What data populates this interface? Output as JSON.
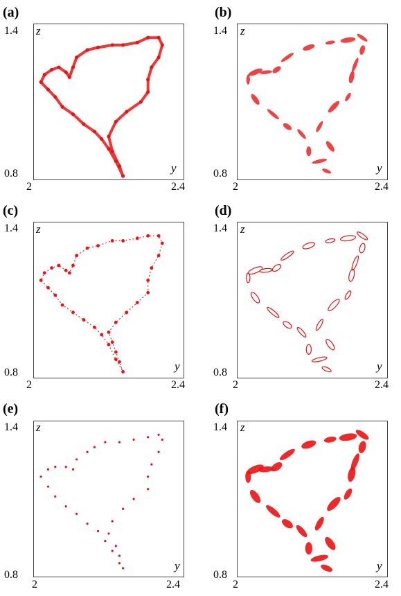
{
  "colors": {
    "points": "#ee1111",
    "frame": "#444444"
  },
  "chart_data": [
    {
      "panel": "(a)",
      "type": "scatter",
      "style": "dense-loop",
      "xlabel": "y",
      "ylabel": "z",
      "xlim": [
        2,
        2.4
      ],
      "ylim": [
        0.8,
        1.4
      ],
      "xticks": [
        "2",
        "2.4"
      ],
      "yticks": [
        "1.4",
        "0.8"
      ],
      "points": [
        [
          2.24,
          0.8
        ],
        [
          2.23,
          0.84
        ],
        [
          2.21,
          0.9
        ],
        [
          2.2,
          0.96
        ],
        [
          2.22,
          1.02
        ],
        [
          2.25,
          1.06
        ],
        [
          2.29,
          1.1
        ],
        [
          2.31,
          1.14
        ],
        [
          2.31,
          1.19
        ],
        [
          2.32,
          1.24
        ],
        [
          2.34,
          1.28
        ],
        [
          2.35,
          1.33
        ],
        [
          2.34,
          1.36
        ],
        [
          2.31,
          1.36
        ],
        [
          2.28,
          1.34
        ],
        [
          2.24,
          1.33
        ],
        [
          2.21,
          1.33
        ],
        [
          2.17,
          1.32
        ],
        [
          2.14,
          1.31
        ],
        [
          2.11,
          1.28
        ],
        [
          2.1,
          1.24
        ],
        [
          2.09,
          1.2
        ],
        [
          2.08,
          1.22
        ],
        [
          2.06,
          1.24
        ],
        [
          2.04,
          1.23
        ],
        [
          2.02,
          1.21
        ],
        [
          2.01,
          1.18
        ],
        [
          2.03,
          1.15
        ],
        [
          2.05,
          1.12
        ],
        [
          2.07,
          1.08
        ],
        [
          2.1,
          1.05
        ],
        [
          2.13,
          1.01
        ],
        [
          2.16,
          0.98
        ],
        [
          2.18,
          0.95
        ],
        [
          2.2,
          0.91
        ],
        [
          2.22,
          0.86
        ]
      ]
    },
    {
      "panel": "(b)",
      "type": "scatter",
      "style": "dense-islands",
      "xlabel": "y",
      "ylabel": "z",
      "xlim": [
        2,
        2.4
      ],
      "ylim": [
        0.8,
        1.4
      ],
      "xticks": [
        "2",
        "2.4"
      ],
      "yticks": [
        "1.4",
        "0.8"
      ],
      "points": [
        [
          2.24,
          0.82
        ],
        [
          2.25,
          0.92
        ],
        [
          2.22,
          0.86
        ],
        [
          2.19,
          0.9
        ],
        [
          2.22,
          1.0
        ],
        [
          2.26,
          1.08
        ],
        [
          2.3,
          1.12
        ],
        [
          2.31,
          1.2
        ],
        [
          2.32,
          1.25
        ],
        [
          2.34,
          1.31
        ],
        [
          2.34,
          1.36
        ],
        [
          2.3,
          1.35
        ],
        [
          2.25,
          1.34
        ],
        [
          2.19,
          1.32
        ],
        [
          2.13,
          1.28
        ],
        [
          2.1,
          1.23
        ],
        [
          2.07,
          1.22
        ],
        [
          2.04,
          1.22
        ],
        [
          2.02,
          1.19
        ],
        [
          2.04,
          1.11
        ],
        [
          2.09,
          1.05
        ],
        [
          2.13,
          1.0
        ],
        [
          2.17,
          0.97
        ]
      ]
    },
    {
      "panel": "(c)",
      "type": "scatter",
      "style": "clusters",
      "xlabel": "y",
      "ylabel": "z",
      "xlim": [
        2,
        2.4
      ],
      "ylim": [
        0.8,
        1.4
      ],
      "xticks": [
        "2",
        "2.4"
      ],
      "yticks": [
        "1.4",
        "0.8"
      ],
      "points": [
        [
          2.24,
          0.81
        ],
        [
          2.23,
          0.85
        ],
        [
          2.22,
          0.89
        ],
        [
          2.21,
          0.93
        ],
        [
          2.2,
          0.97
        ],
        [
          2.22,
          1.01
        ],
        [
          2.25,
          1.05
        ],
        [
          2.28,
          1.09
        ],
        [
          2.31,
          1.13
        ],
        [
          2.31,
          1.18
        ],
        [
          2.32,
          1.23
        ],
        [
          2.34,
          1.28
        ],
        [
          2.35,
          1.33
        ],
        [
          2.34,
          1.36
        ],
        [
          2.31,
          1.36
        ],
        [
          2.28,
          1.35
        ],
        [
          2.24,
          1.34
        ],
        [
          2.21,
          1.34
        ],
        [
          2.17,
          1.32
        ],
        [
          2.14,
          1.31
        ],
        [
          2.11,
          1.28
        ],
        [
          2.1,
          1.24
        ],
        [
          2.09,
          1.21
        ],
        [
          2.08,
          1.22
        ],
        [
          2.06,
          1.24
        ],
        [
          2.04,
          1.23
        ],
        [
          2.02,
          1.21
        ],
        [
          2.01,
          1.18
        ],
        [
          2.03,
          1.15
        ],
        [
          2.05,
          1.12
        ],
        [
          2.07,
          1.08
        ],
        [
          2.1,
          1.05
        ],
        [
          2.13,
          1.02
        ],
        [
          2.16,
          0.99
        ],
        [
          2.18,
          0.96
        ],
        [
          2.2,
          0.92
        ],
        [
          2.22,
          0.86
        ]
      ]
    },
    {
      "panel": "(d)",
      "type": "scatter",
      "style": "outlined-islands",
      "xlabel": "y",
      "ylabel": "z",
      "xlim": [
        2,
        2.4
      ],
      "ylim": [
        0.8,
        1.4
      ],
      "xticks": [
        "2",
        "2.4"
      ],
      "yticks": [
        "1.4",
        "0.8"
      ],
      "points": [
        [
          2.24,
          0.82
        ],
        [
          2.25,
          0.92
        ],
        [
          2.22,
          0.86
        ],
        [
          2.19,
          0.9
        ],
        [
          2.22,
          1.0
        ],
        [
          2.26,
          1.08
        ],
        [
          2.3,
          1.12
        ],
        [
          2.31,
          1.2
        ],
        [
          2.32,
          1.25
        ],
        [
          2.34,
          1.31
        ],
        [
          2.34,
          1.36
        ],
        [
          2.3,
          1.35
        ],
        [
          2.25,
          1.34
        ],
        [
          2.19,
          1.32
        ],
        [
          2.13,
          1.28
        ],
        [
          2.1,
          1.23
        ],
        [
          2.07,
          1.22
        ],
        [
          2.04,
          1.22
        ],
        [
          2.02,
          1.19
        ],
        [
          2.04,
          1.11
        ],
        [
          2.09,
          1.05
        ],
        [
          2.13,
          1.0
        ],
        [
          2.17,
          0.97
        ]
      ]
    },
    {
      "panel": "(e)",
      "type": "scatter",
      "style": "sparse",
      "xlabel": "y",
      "ylabel": "z",
      "xlim": [
        2,
        2.4
      ],
      "ylim": [
        0.8,
        1.4
      ],
      "xticks": [
        "2",
        "2.4"
      ],
      "yticks": [
        "1.4",
        "0.8"
      ],
      "points": [
        [
          2.24,
          0.82
        ],
        [
          2.23,
          0.87
        ],
        [
          2.22,
          0.91
        ],
        [
          2.2,
          0.96
        ],
        [
          2.21,
          1.01
        ],
        [
          2.24,
          1.06
        ],
        [
          2.27,
          1.1
        ],
        [
          2.31,
          1.14
        ],
        [
          2.31,
          1.19
        ],
        [
          2.32,
          1.24
        ],
        [
          2.34,
          1.29
        ],
        [
          2.35,
          1.34
        ],
        [
          2.34,
          1.36
        ],
        [
          2.31,
          1.35
        ],
        [
          2.27,
          1.34
        ],
        [
          2.23,
          1.33
        ],
        [
          2.19,
          1.33
        ],
        [
          2.16,
          1.31
        ],
        [
          2.14,
          1.29
        ],
        [
          2.11,
          1.26
        ],
        [
          2.1,
          1.22
        ],
        [
          2.08,
          1.23
        ],
        [
          2.05,
          1.23
        ],
        [
          2.03,
          1.22
        ],
        [
          2.01,
          1.19
        ],
        [
          2.03,
          1.15
        ],
        [
          2.05,
          1.11
        ],
        [
          2.08,
          1.07
        ],
        [
          2.11,
          1.04
        ],
        [
          2.14,
          1.0
        ],
        [
          2.17,
          0.97
        ],
        [
          2.19,
          0.93
        ],
        [
          2.21,
          0.89
        ],
        [
          2.23,
          0.84
        ]
      ]
    },
    {
      "panel": "(f)",
      "type": "scatter",
      "style": "filled-islands",
      "xlabel": "y",
      "ylabel": "z",
      "xlim": [
        2,
        2.4
      ],
      "ylim": [
        0.8,
        1.4
      ],
      "xticks": [
        "2",
        "2.4"
      ],
      "yticks": [
        "1.4",
        "0.8"
      ],
      "points": [
        [
          2.24,
          0.82
        ],
        [
          2.25,
          0.92
        ],
        [
          2.22,
          0.86
        ],
        [
          2.19,
          0.9
        ],
        [
          2.22,
          1.0
        ],
        [
          2.26,
          1.08
        ],
        [
          2.3,
          1.12
        ],
        [
          2.31,
          1.2
        ],
        [
          2.32,
          1.25
        ],
        [
          2.34,
          1.31
        ],
        [
          2.34,
          1.36
        ],
        [
          2.3,
          1.35
        ],
        [
          2.25,
          1.34
        ],
        [
          2.19,
          1.32
        ],
        [
          2.13,
          1.28
        ],
        [
          2.1,
          1.23
        ],
        [
          2.07,
          1.22
        ],
        [
          2.04,
          1.22
        ],
        [
          2.02,
          1.19
        ],
        [
          2.04,
          1.11
        ],
        [
          2.09,
          1.05
        ],
        [
          2.13,
          1.0
        ],
        [
          2.17,
          0.97
        ]
      ]
    }
  ]
}
